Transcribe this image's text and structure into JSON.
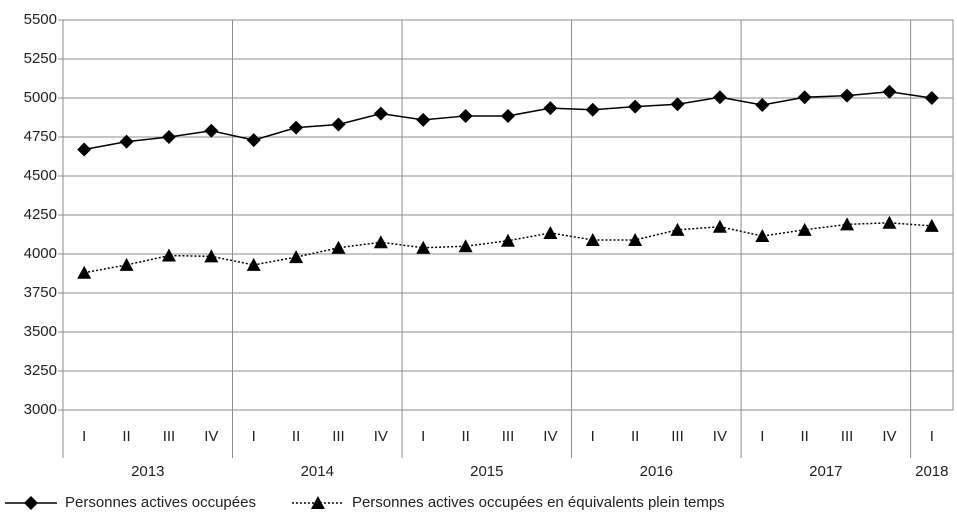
{
  "chart_data": {
    "type": "line",
    "categories": [
      "I",
      "II",
      "III",
      "IV",
      "I",
      "II",
      "III",
      "IV",
      "I",
      "II",
      "III",
      "IV",
      "I",
      "II",
      "III",
      "IV",
      "I",
      "II",
      "III",
      "IV",
      "I"
    ],
    "years": [
      "2013",
      "2014",
      "2015",
      "2016",
      "2017",
      "2018"
    ],
    "series": [
      {
        "name": "Personnes actives occupées",
        "color": "#000000",
        "marker": "diamond",
        "dash": "solid",
        "values": [
          4670,
          4720,
          4750,
          4790,
          4730,
          4810,
          4830,
          4900,
          4860,
          4885,
          4885,
          4935,
          4925,
          4945,
          4960,
          5005,
          4955,
          5005,
          5015,
          5040,
          5000
        ]
      },
      {
        "name": "Personnes actives occupées en équivalents plein temps",
        "color": "#000000",
        "marker": "triangle",
        "dash": "dotted",
        "values": [
          3880,
          3930,
          3990,
          3985,
          3930,
          3980,
          4040,
          4075,
          4040,
          4050,
          4085,
          4135,
          4090,
          4090,
          4155,
          4175,
          4115,
          4155,
          4190,
          4200,
          4180
        ]
      }
    ],
    "ylim": [
      3000,
      5500
    ],
    "yticks": [
      3000,
      3250,
      3500,
      3750,
      4000,
      4250,
      4500,
      4750,
      5000,
      5250,
      5500
    ],
    "grid": true,
    "legend": "bottom"
  }
}
